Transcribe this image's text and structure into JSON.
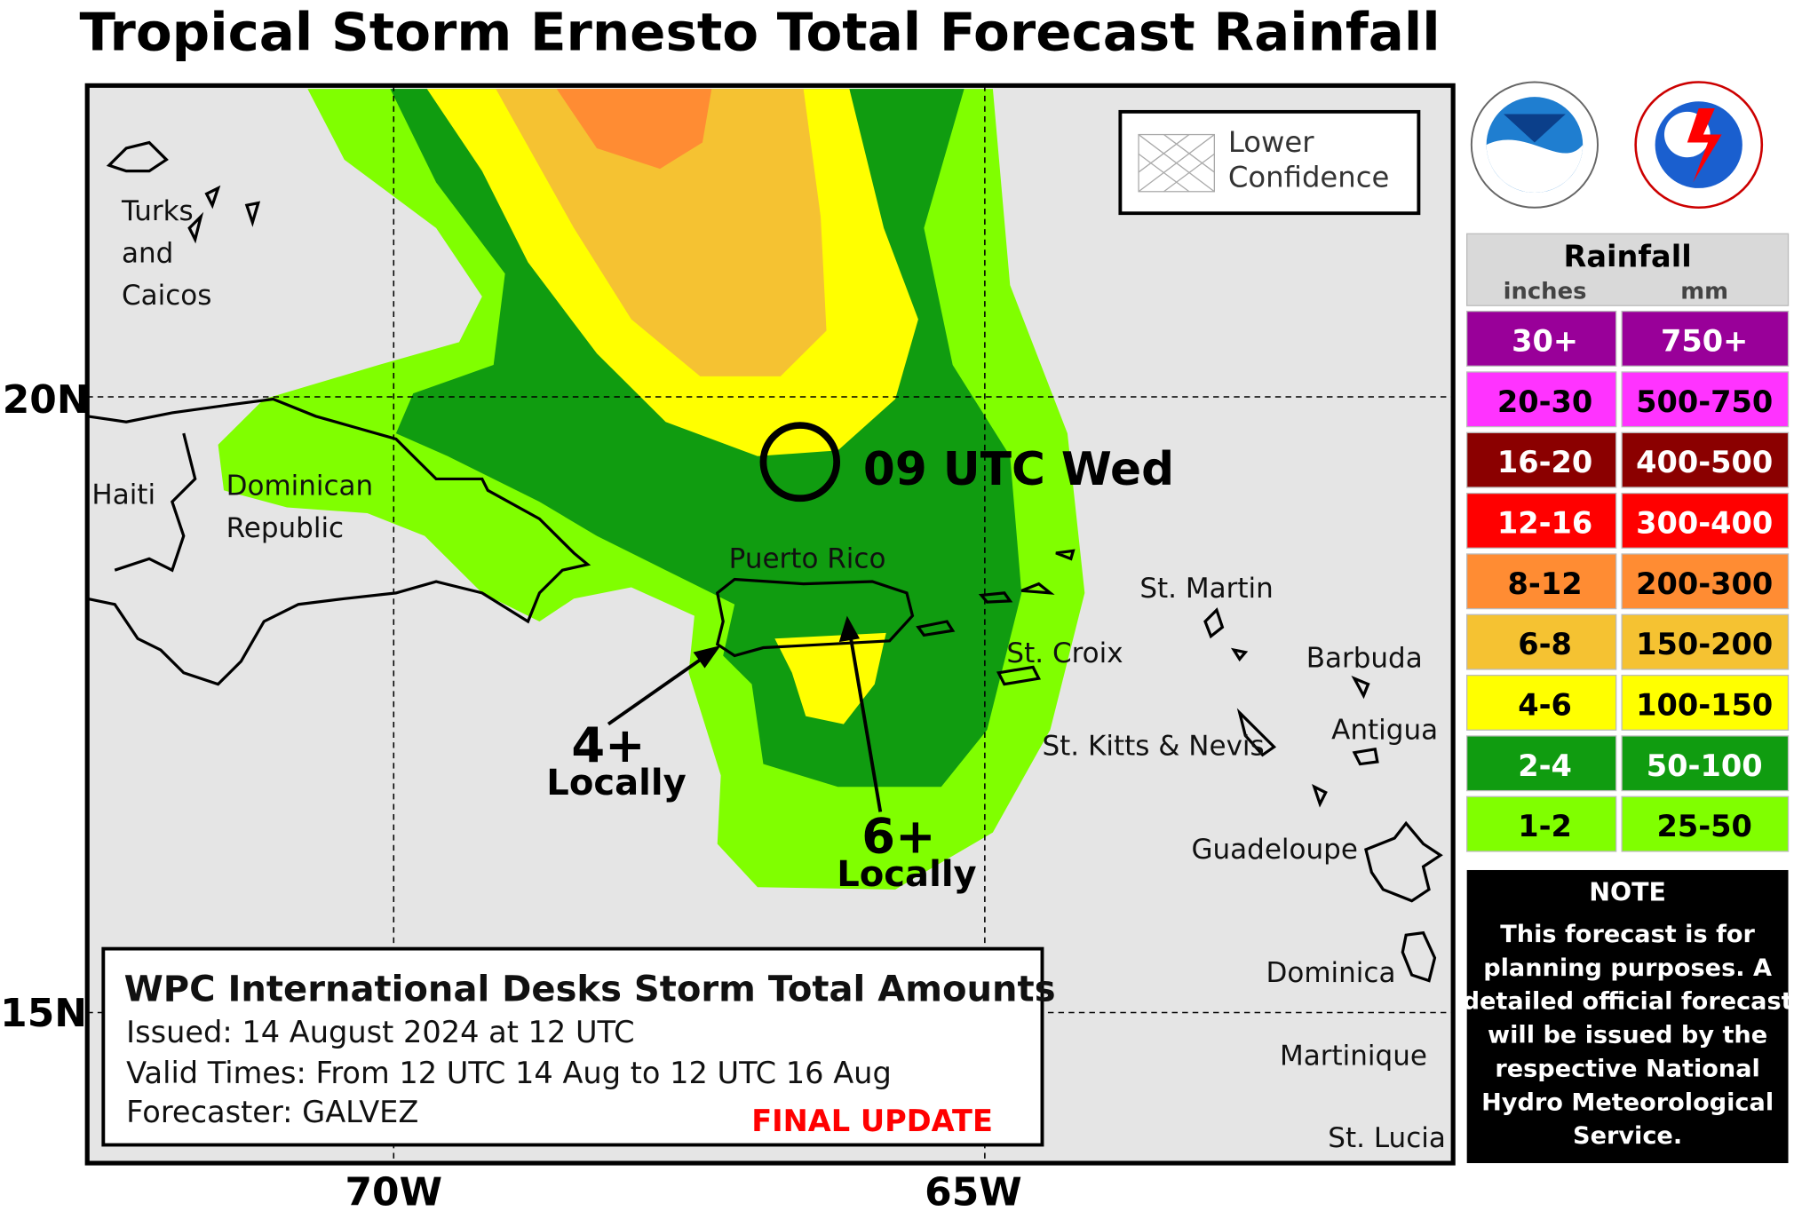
{
  "title": "Tropical Storm Ernesto Total Forecast Rainfall",
  "map": {
    "lat_labels": [
      "20N",
      "15N"
    ],
    "lon_labels": [
      "70W",
      "65W"
    ],
    "confidence_legend": [
      "Lower",
      "Confidence"
    ],
    "places": [
      [
        "Turks",
        "and",
        "Caicos"
      ],
      [
        "Haiti"
      ],
      [
        "Dominican",
        "Republic"
      ],
      [
        "Puerto Rico"
      ],
      [
        "St. Martin"
      ],
      [
        "St. Croix"
      ],
      [
        "Barbuda"
      ],
      [
        "Antigua"
      ],
      [
        "St. Kitts & Nevis"
      ],
      [
        "Guadeloupe"
      ],
      [
        "Dominica"
      ],
      [
        "Martinique"
      ],
      [
        "St. Lucia"
      ]
    ],
    "storm_label": "09 UTC Wed",
    "annotations": [
      {
        "amount": "4+",
        "note": "Locally"
      },
      {
        "amount": "6+",
        "note": "Locally"
      }
    ]
  },
  "info": {
    "heading": "WPC International Desks Storm Total Amounts",
    "issued": "Issued:  14 August 2024 at 12 UTC",
    "valid": "Valid Times:  From 12 UTC 14 Aug  to  12 UTC 16 Aug",
    "forecaster": "Forecaster:  GALVEZ",
    "status": "FINAL UPDATE"
  },
  "legend": {
    "title": "Rainfall",
    "units": [
      "inches",
      "mm"
    ],
    "rows": [
      {
        "inches": "30+",
        "mm": "750+",
        "color": "#990099"
      },
      {
        "inches": "20-30",
        "mm": "500-750",
        "color": "#ff33ff"
      },
      {
        "inches": "16-20",
        "mm": "400-500",
        "color": "#8b0000"
      },
      {
        "inches": "12-16",
        "mm": "300-400",
        "color": "#ff0000"
      },
      {
        "inches": "8-12",
        "mm": "200-300",
        "color": "#ff8c33"
      },
      {
        "inches": "6-8",
        "mm": "150-200",
        "color": "#f5c232"
      },
      {
        "inches": "4-6",
        "mm": "100-150",
        "color": "#ffff00"
      },
      {
        "inches": "2-4",
        "mm": "50-100",
        "color": "#109c10"
      },
      {
        "inches": "1-2",
        "mm": "25-50",
        "color": "#80ff00"
      }
    ]
  },
  "note": {
    "title": "NOTE",
    "lines": [
      "This forecast is for",
      "planning purposes. A",
      "detailed official forecast",
      "will be issued by the",
      "respective National",
      "Hydro Meteorological",
      "Service."
    ]
  }
}
